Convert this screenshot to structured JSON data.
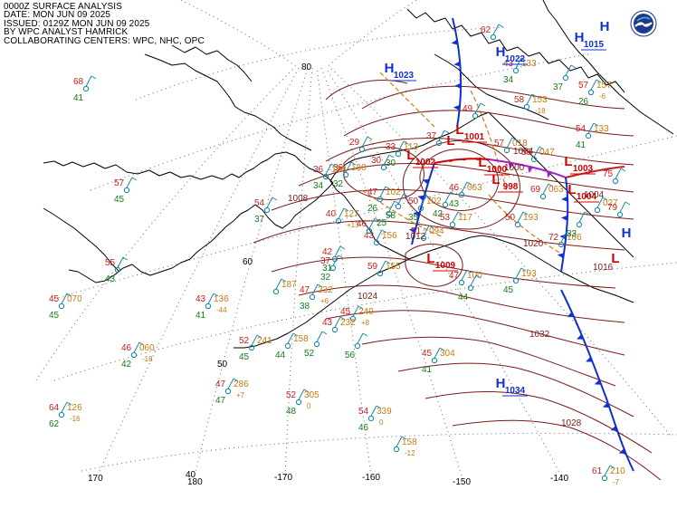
{
  "header": {
    "line1": "0000Z SURFACE ANALYSIS",
    "line2": "DATE: MON JUN 09 2025",
    "line3": "ISSUED: 0129Z MON JUN 09 2025",
    "line4": "BY WPC ANALYST HAMRICK",
    "line5": "COLLABORATING CENTERS: WPC, NHC, OPC"
  },
  "colors": {
    "isobar": "#7b1a1a",
    "coast": "#000000",
    "grid": "#555555",
    "high": "#1030d0",
    "low": "#d00000",
    "cold_front": "#1030d0",
    "warm_front": "#d00000",
    "stationary_warm": "#c81e1e",
    "occluded": "#a020c0",
    "trough": "#d07a10",
    "temperature": "#c81e1e",
    "dewpoint": "#1a7a1a",
    "pressure": "#c87a10",
    "station": "#1a8aa8"
  },
  "grid_labels": {
    "lat": [
      {
        "key": "lat80",
        "text": "80"
      },
      {
        "key": "lat60",
        "text": "60"
      },
      {
        "key": "lat50",
        "text": "50"
      },
      {
        "key": "lat40",
        "text": "40"
      }
    ],
    "lon": [
      {
        "key": "lon170",
        "text": "170"
      },
      {
        "key": "lon180",
        "text": "180"
      },
      {
        "key": "lon-170",
        "text": "-170"
      },
      {
        "key": "lon-160",
        "text": "-160"
      },
      {
        "key": "lon-150",
        "text": "-150"
      },
      {
        "key": "lon-140",
        "text": "-140"
      }
    ]
  },
  "pressure_centers": [
    {
      "key": "h1",
      "type": "H",
      "value": "1023"
    },
    {
      "key": "h2",
      "type": "H",
      "value": "1034"
    },
    {
      "key": "h3",
      "type": "H",
      "value": ""
    },
    {
      "key": "h4",
      "type": "H",
      "value": ""
    },
    {
      "key": "h5",
      "type": "H",
      "value": "1022"
    },
    {
      "key": "h6",
      "type": "H",
      "value": "1015"
    },
    {
      "key": "l1",
      "type": "L",
      "value": "1001"
    },
    {
      "key": "l2",
      "type": "L",
      "value": "1002"
    },
    {
      "key": "l3",
      "type": "L",
      "value": "1000"
    },
    {
      "key": "l4",
      "type": "L",
      "value": "998"
    },
    {
      "key": "l5",
      "type": "L",
      "value": "1003"
    },
    {
      "key": "l6",
      "type": "L",
      "value": "1004"
    },
    {
      "key": "l7",
      "type": "L",
      "value": "1009"
    },
    {
      "key": "l8",
      "type": "L",
      "value": ""
    },
    {
      "key": "l9",
      "type": "L",
      "value": ""
    }
  ],
  "isobar_labels": [
    {
      "key": "i1032",
      "text": "1032"
    },
    {
      "key": "i1024",
      "text": "1024"
    },
    {
      "key": "i1020",
      "text": "1020"
    },
    {
      "key": "i1016",
      "text": "1016"
    },
    {
      "key": "i1012",
      "text": "1012"
    },
    {
      "key": "i1008",
      "text": "1008"
    },
    {
      "key": "i1004",
      "text": "1004"
    },
    {
      "key": "i1000",
      "text": "1000"
    },
    {
      "key": "i1028",
      "text": "1028"
    },
    {
      "key": "i1004b",
      "text": "1004"
    }
  ],
  "stations": [
    {
      "key": "s1",
      "t": "68",
      "d": "41",
      "p": ""
    },
    {
      "key": "s2",
      "t": "57",
      "d": "45",
      "p": ""
    },
    {
      "key": "s3",
      "t": "55",
      "d": "43",
      "p": ""
    },
    {
      "key": "s4",
      "t": "45",
      "d": "45",
      "p": "070"
    },
    {
      "key": "s5",
      "t": "43",
      "d": "41",
      "p": "136",
      "tend": "-44"
    },
    {
      "key": "s6",
      "t": "46",
      "d": "42",
      "p": "060",
      "tend": "-18"
    },
    {
      "key": "s7",
      "t": "64",
      "d": "62",
      "p": "126",
      "tend": "-16"
    },
    {
      "key": "s8",
      "t": "47",
      "d": "47",
      "p": "286",
      "tend": "+7"
    },
    {
      "key": "s9",
      "t": "52",
      "d": "48",
      "p": "305",
      "tend": "0"
    },
    {
      "key": "s10",
      "t": "54",
      "d": "46",
      "p": "339",
      "tend": "0"
    },
    {
      "key": "s11",
      "t": "",
      "d": "",
      "p": "158",
      "tend": "-12"
    },
    {
      "key": "s12",
      "t": "45",
      "d": "41",
      "p": "304"
    },
    {
      "key": "s13",
      "t": "61",
      "d": "",
      "p": "210",
      "tend": "-7"
    },
    {
      "key": "s14",
      "t": "52",
      "d": "45",
      "p": "241"
    },
    {
      "key": "s15",
      "t": "",
      "d": "44",
      "p": "158"
    },
    {
      "key": "s16",
      "t": "47",
      "d": "38",
      "p": "232",
      "tend": "+6"
    },
    {
      "key": "s17",
      "t": "45",
      "d": "",
      "p": "249",
      "tend": "+8"
    },
    {
      "key": "s18",
      "t": "43",
      "d": "",
      "p": "232"
    },
    {
      "key": "s19",
      "t": "",
      "d": "",
      "p": "187"
    },
    {
      "key": "s20",
      "t": "42",
      "d": "31",
      "p": ""
    },
    {
      "key": "s21",
      "t": "37",
      "d": "32",
      "p": ""
    },
    {
      "key": "s22",
      "t": "54",
      "d": "37",
      "p": ""
    },
    {
      "key": "s23",
      "t": "36",
      "d": "32",
      "p": "130"
    },
    {
      "key": "s24",
      "t": "40",
      "d": "",
      "p": "127",
      "tend": "+13"
    },
    {
      "key": "s25",
      "t": "36",
      "d": "34",
      "p": "133"
    },
    {
      "key": "s26",
      "t": "29",
      "d": "",
      "p": ""
    },
    {
      "key": "s27",
      "t": "33",
      "d": "30",
      "p": "113"
    },
    {
      "key": "s28",
      "t": "37",
      "d": "",
      "p": ""
    },
    {
      "key": "s29",
      "t": "47",
      "d": "26",
      "p": "102"
    },
    {
      "key": "s30",
      "t": "50",
      "d": "35",
      "p": "102"
    },
    {
      "key": "s31",
      "t": "51",
      "d": "",
      "p": "094"
    },
    {
      "key": "s32",
      "t": "43",
      "d": "",
      "p": "156"
    },
    {
      "key": "s33",
      "t": "59",
      "d": "",
      "p": "155"
    },
    {
      "key": "s34",
      "t": "46",
      "d": "43",
      "p": "063"
    },
    {
      "key": "s35",
      "t": "53",
      "d": "",
      "p": "117"
    },
    {
      "key": "s36",
      "t": "47",
      "d": "",
      "p": "100"
    },
    {
      "key": "s37",
      "t": "57",
      "d": "",
      "p": "018"
    },
    {
      "key": "s38",
      "t": "50",
      "d": "",
      "p": "193"
    },
    {
      "key": "s39",
      "t": "72",
      "d": "",
      "p": "166"
    },
    {
      "key": "s40",
      "t": "69",
      "d": "",
      "p": "063"
    },
    {
      "key": "s41",
      "t": "59",
      "d": "",
      "p": "047"
    },
    {
      "key": "s42",
      "t": "75",
      "d": "",
      "p": ""
    },
    {
      "key": "s43",
      "t": "",
      "d": "",
      "p": "027"
    },
    {
      "key": "s44",
      "t": "79",
      "d": "",
      "p": ""
    },
    {
      "key": "s45",
      "t": "54",
      "d": "41",
      "p": "133"
    },
    {
      "key": "s46",
      "t": "57",
      "d": "26",
      "p": "157",
      "tend": "-6"
    },
    {
      "key": "s47",
      "t": "58",
      "d": "",
      "p": "153",
      "tend": "-18"
    },
    {
      "key": "s48",
      "t": "49",
      "d": "",
      "p": ""
    },
    {
      "key": "s49",
      "t": "43",
      "d": "34",
      "p": "133"
    },
    {
      "key": "s50",
      "t": "",
      "d": "37",
      "p": ""
    },
    {
      "key": "s51",
      "t": "30",
      "d": "",
      "p": ""
    },
    {
      "key": "s52",
      "t": "46",
      "d": "",
      "p": ""
    },
    {
      "key": "s53",
      "t": "",
      "d": "33",
      "p": ""
    },
    {
      "key": "s54",
      "t": "62",
      "d": "",
      "p": ""
    },
    {
      "key": "s55",
      "t": "",
      "d": "45",
      "p": "193"
    },
    {
      "key": "s56",
      "t": "",
      "d": "25",
      "p": ""
    },
    {
      "key": "s57",
      "t": "",
      "d": "56",
      "p": ""
    },
    {
      "key": "s58",
      "t": "",
      "d": "52",
      "p": ""
    },
    {
      "key": "s59",
      "t": "",
      "d": "42",
      "p": ""
    },
    {
      "key": "s60",
      "t": "",
      "d": "58",
      "p": ""
    },
    {
      "key": "s61",
      "t": "",
      "d": "44",
      "p": ""
    }
  ]
}
